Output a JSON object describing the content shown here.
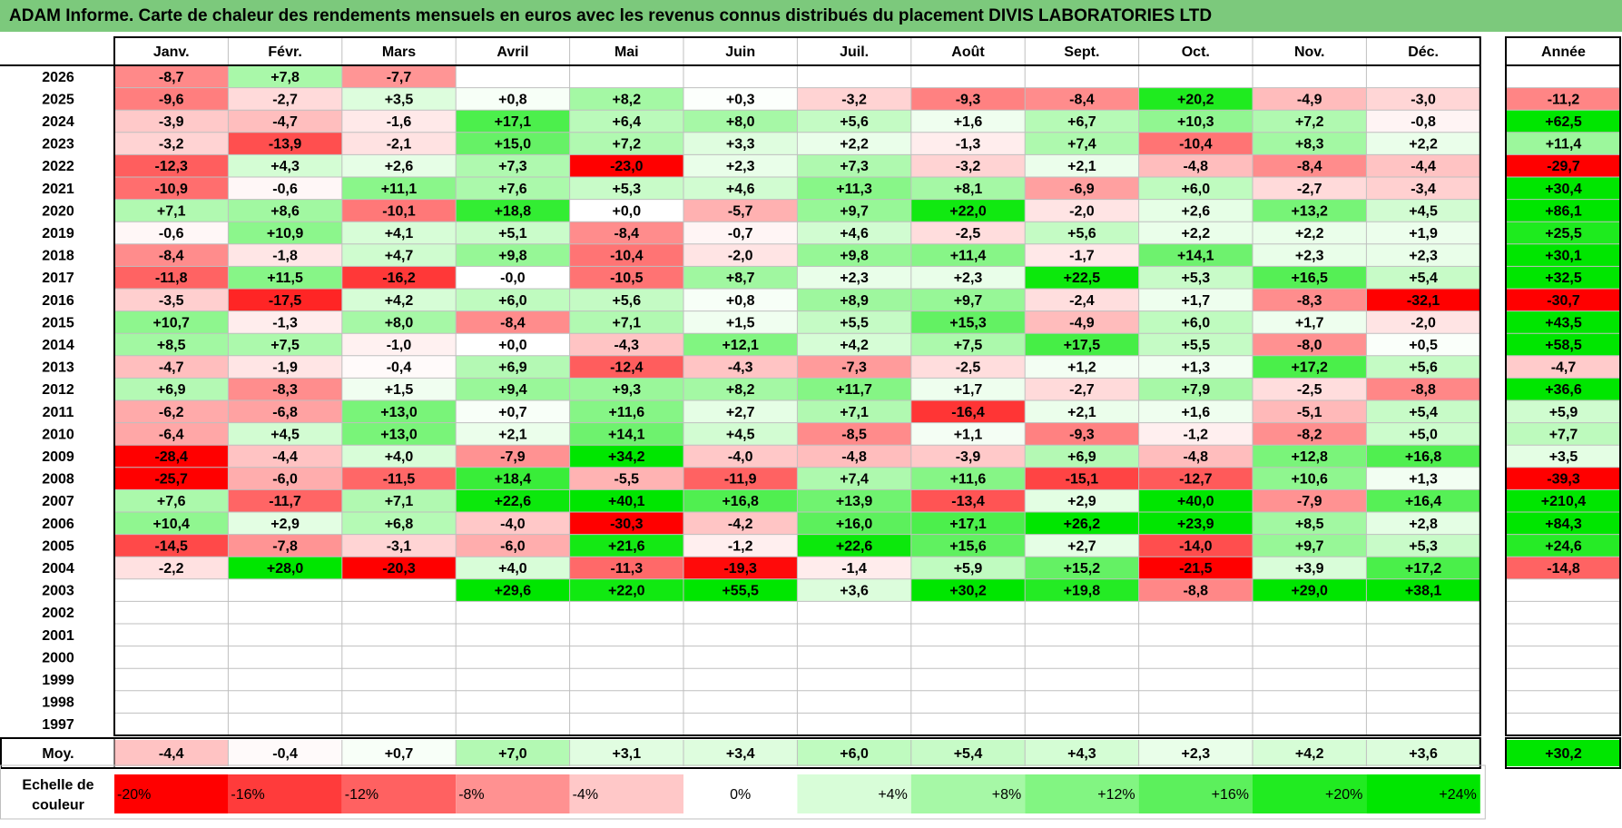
{
  "title": "ADAM Informe. Carte de chaleur des rendements mensuels en euros avec les revenus connus distribués du placement DIVIS LABORATORIES LTD",
  "chart_data": {
    "type": "heatmap",
    "title": "ADAM Informe. Carte de chaleur des rendements mensuels en euros avec les revenus connus distribués du placement DIVIS LABORATORIES LTD",
    "months": [
      "Janv.",
      "Févr.",
      "Mars",
      "Avril",
      "Mai",
      "Juin",
      "Juil.",
      "Août",
      "Sept.",
      "Oct.",
      "Nov.",
      "Déc."
    ],
    "year_header": "Année",
    "rows": [
      {
        "year": "2026",
        "months": [
          "-8,7",
          "+7,8",
          "-7,7",
          "",
          "",
          "",
          "",
          "",
          "",
          "",
          "",
          ""
        ],
        "annual": ""
      },
      {
        "year": "2025",
        "months": [
          "-9,6",
          "-2,7",
          "+3,5",
          "+0,8",
          "+8,2",
          "+0,3",
          "-3,2",
          "-9,3",
          "-8,4",
          "+20,2",
          "-4,9",
          "-3,0"
        ],
        "annual": "-11,2"
      },
      {
        "year": "2024",
        "months": [
          "-3,9",
          "-4,7",
          "-1,6",
          "+17,1",
          "+6,4",
          "+8,0",
          "+5,6",
          "+1,6",
          "+6,7",
          "+10,3",
          "+7,2",
          "-0,8"
        ],
        "annual": "+62,5"
      },
      {
        "year": "2023",
        "months": [
          "-3,2",
          "-13,9",
          "-2,1",
          "+15,0",
          "+7,2",
          "+3,3",
          "+2,2",
          "-1,3",
          "+7,4",
          "-10,4",
          "+8,3",
          "+2,2"
        ],
        "annual": "+11,4"
      },
      {
        "year": "2022",
        "months": [
          "-12,3",
          "+4,3",
          "+2,6",
          "+7,3",
          "-23,0",
          "+2,3",
          "+7,3",
          "-3,2",
          "+2,1",
          "-4,8",
          "-8,4",
          "-4,4"
        ],
        "annual": "-29,7"
      },
      {
        "year": "2021",
        "months": [
          "-10,9",
          "-0,6",
          "+11,1",
          "+7,6",
          "+5,3",
          "+4,6",
          "+11,3",
          "+8,1",
          "-6,9",
          "+6,0",
          "-2,7",
          "-3,4"
        ],
        "annual": "+30,4"
      },
      {
        "year": "2020",
        "months": [
          "+7,1",
          "+8,6",
          "-10,1",
          "+18,8",
          "+0,0",
          "-5,7",
          "+9,7",
          "+22,0",
          "-2,0",
          "+2,6",
          "+13,2",
          "+4,5"
        ],
        "annual": "+86,1"
      },
      {
        "year": "2019",
        "months": [
          "-0,6",
          "+10,9",
          "+4,1",
          "+5,1",
          "-8,4",
          "-0,7",
          "+4,6",
          "-2,5",
          "+5,6",
          "+2,2",
          "+2,2",
          "+1,9"
        ],
        "annual": "+25,5"
      },
      {
        "year": "2018",
        "months": [
          "-8,4",
          "-1,8",
          "+4,7",
          "+9,8",
          "-10,4",
          "-2,0",
          "+9,8",
          "+11,4",
          "-1,7",
          "+14,1",
          "+2,3",
          "+2,3"
        ],
        "annual": "+30,1"
      },
      {
        "year": "2017",
        "months": [
          "-11,8",
          "+11,5",
          "-16,2",
          "-0,0",
          "-10,5",
          "+8,7",
          "+2,3",
          "+2,3",
          "+22,5",
          "+5,3",
          "+16,5",
          "+5,4"
        ],
        "annual": "+32,5"
      },
      {
        "year": "2016",
        "months": [
          "-3,5",
          "-17,5",
          "+4,2",
          "+6,0",
          "+5,6",
          "+0,8",
          "+8,9",
          "+9,7",
          "-2,4",
          "+1,7",
          "-8,3",
          "-32,1"
        ],
        "annual": "-30,7"
      },
      {
        "year": "2015",
        "months": [
          "+10,7",
          "-1,3",
          "+8,0",
          "-8,4",
          "+7,1",
          "+1,5",
          "+5,5",
          "+15,3",
          "-4,9",
          "+6,0",
          "+1,7",
          "-2,0"
        ],
        "annual": "+43,5"
      },
      {
        "year": "2014",
        "months": [
          "+8,5",
          "+7,5",
          "-1,0",
          "+0,0",
          "-4,3",
          "+12,1",
          "+4,2",
          "+7,5",
          "+17,5",
          "+5,5",
          "-8,0",
          "+0,5"
        ],
        "annual": "+58,5"
      },
      {
        "year": "2013",
        "months": [
          "-4,7",
          "-1,9",
          "-0,4",
          "+6,9",
          "-12,4",
          "-4,3",
          "-7,3",
          "-2,5",
          "+1,2",
          "+1,3",
          "+17,2",
          "+5,6"
        ],
        "annual": "-4,7"
      },
      {
        "year": "2012",
        "months": [
          "+6,9",
          "-8,3",
          "+1,5",
          "+9,4",
          "+9,3",
          "+8,2",
          "+11,7",
          "+1,7",
          "-2,7",
          "+7,9",
          "-2,5",
          "-8,8"
        ],
        "annual": "+36,6"
      },
      {
        "year": "2011",
        "months": [
          "-6,2",
          "-6,8",
          "+13,0",
          "+0,7",
          "+11,6",
          "+2,7",
          "+7,1",
          "-16,4",
          "+2,1",
          "+1,6",
          "-5,1",
          "+5,4"
        ],
        "annual": "+5,9"
      },
      {
        "year": "2010",
        "months": [
          "-6,4",
          "+4,5",
          "+13,0",
          "+2,1",
          "+14,1",
          "+4,5",
          "-8,5",
          "+1,1",
          "-9,3",
          "-1,2",
          "-8,2",
          "+5,0"
        ],
        "annual": "+7,7"
      },
      {
        "year": "2009",
        "months": [
          "-28,4",
          "-4,4",
          "+4,0",
          "-7,9",
          "+34,2",
          "-4,0",
          "-4,8",
          "-3,9",
          "+6,9",
          "-4,8",
          "+12,8",
          "+16,8"
        ],
        "annual": "+3,5"
      },
      {
        "year": "2008",
        "months": [
          "-25,7",
          "-6,0",
          "-11,5",
          "+18,4",
          "-5,5",
          "-11,9",
          "+7,4",
          "+11,6",
          "-15,1",
          "-12,7",
          "+10,6",
          "+1,3"
        ],
        "annual": "-39,3"
      },
      {
        "year": "2007",
        "months": [
          "+7,6",
          "-11,7",
          "+7,1",
          "+22,6",
          "+40,1",
          "+16,8",
          "+13,9",
          "-13,4",
          "+2,9",
          "+40,0",
          "-7,9",
          "+16,4"
        ],
        "annual": "+210,4"
      },
      {
        "year": "2006",
        "months": [
          "+10,4",
          "+2,9",
          "+6,8",
          "-4,0",
          "-30,3",
          "-4,2",
          "+16,0",
          "+17,1",
          "+26,2",
          "+23,9",
          "+8,5",
          "+2,8"
        ],
        "annual": "+84,3"
      },
      {
        "year": "2005",
        "months": [
          "-14,5",
          "-7,8",
          "-3,1",
          "-6,0",
          "+21,6",
          "-1,2",
          "+22,6",
          "+15,6",
          "+2,7",
          "-14,0",
          "+9,7",
          "+5,3"
        ],
        "annual": "+24,6"
      },
      {
        "year": "2004",
        "months": [
          "-2,2",
          "+28,0",
          "-20,3",
          "+4,0",
          "-11,3",
          "-19,3",
          "-1,4",
          "+5,9",
          "+15,2",
          "-21,5",
          "+3,9",
          "+17,2"
        ],
        "annual": "-14,8"
      },
      {
        "year": "2003",
        "months": [
          "",
          "",
          "",
          "+29,6",
          "+22,0",
          "+55,5",
          "+3,6",
          "+30,2",
          "+19,8",
          "-8,8",
          "+29,0",
          "+38,1"
        ],
        "annual": ""
      },
      {
        "year": "2002",
        "months": [
          "",
          "",
          "",
          "",
          "",
          "",
          "",
          "",
          "",
          "",
          "",
          ""
        ],
        "annual": ""
      },
      {
        "year": "2001",
        "months": [
          "",
          "",
          "",
          "",
          "",
          "",
          "",
          "",
          "",
          "",
          "",
          ""
        ],
        "annual": ""
      },
      {
        "year": "2000",
        "months": [
          "",
          "",
          "",
          "",
          "",
          "",
          "",
          "",
          "",
          "",
          "",
          ""
        ],
        "annual": ""
      },
      {
        "year": "1999",
        "months": [
          "",
          "",
          "",
          "",
          "",
          "",
          "",
          "",
          "",
          "",
          "",
          ""
        ],
        "annual": ""
      },
      {
        "year": "1998",
        "months": [
          "",
          "",
          "",
          "",
          "",
          "",
          "",
          "",
          "",
          "",
          "",
          ""
        ],
        "annual": ""
      },
      {
        "year": "1997",
        "months": [
          "",
          "",
          "",
          "",
          "",
          "",
          "",
          "",
          "",
          "",
          "",
          ""
        ],
        "annual": ""
      }
    ],
    "average": {
      "label": "Moy.",
      "months": [
        "-4,4",
        "-0,4",
        "+0,7",
        "+7,0",
        "+3,1",
        "+3,4",
        "+6,0",
        "+5,4",
        "+4,3",
        "+2,3",
        "+4,2",
        "+3,6"
      ],
      "annual": "+30,2"
    },
    "scale": {
      "label_line1": "Echelle de",
      "label_line2": "couleur",
      "labels": [
        "-20%",
        "-16%",
        "-12%",
        "-8%",
        "-4%",
        "0%",
        "+4%",
        "+8%",
        "+12%",
        "+16%",
        "+20%",
        "+24%"
      ],
      "values": [
        -20,
        -16,
        -12,
        -8,
        -4,
        0,
        4,
        8,
        12,
        16,
        20,
        24
      ],
      "colors": [
        "#ff0000",
        "#ff3b3b",
        "#ff6161",
        "#ff9191",
        "#ffc8c8",
        "#ffffff",
        "#d8fdd8",
        "#a6f8a6",
        "#82f582",
        "#5cf05c",
        "#21eb21",
        "#00e600"
      ]
    }
  }
}
